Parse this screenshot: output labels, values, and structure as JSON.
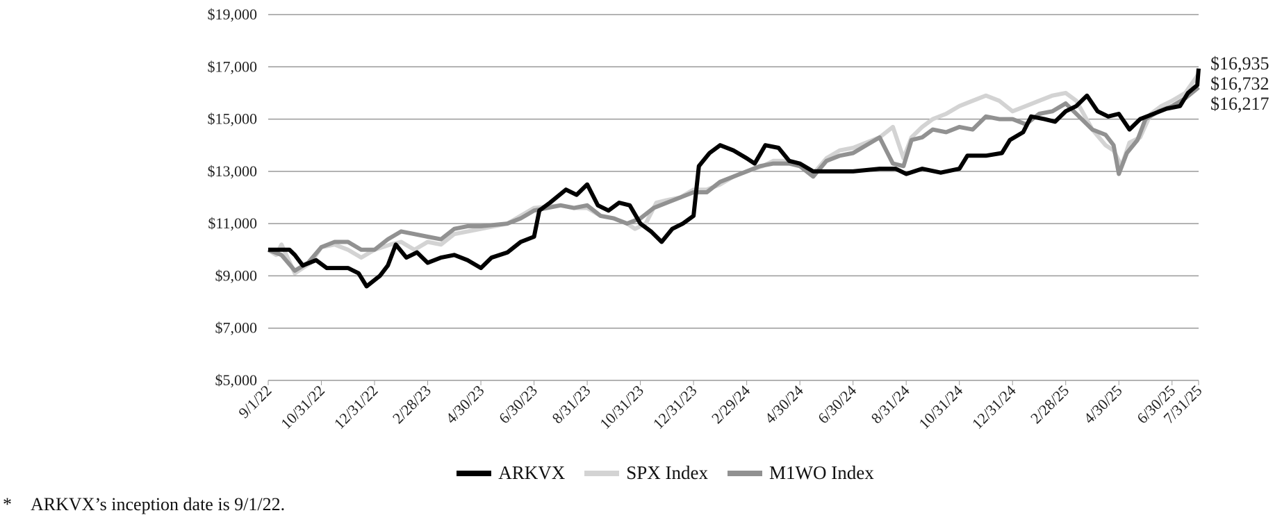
{
  "chart_data": {
    "type": "line",
    "title": "",
    "xlabel": "",
    "ylabel": "",
    "ylim": [
      5000,
      19000
    ],
    "yticks": [
      "$5,000",
      "$7,000",
      "$9,000",
      "$11,000",
      "$13,000",
      "$15,000",
      "$17,000",
      "$19,000"
    ],
    "ytick_values": [
      5000,
      7000,
      9000,
      11000,
      13000,
      15000,
      17000,
      19000
    ],
    "xlim_months": [
      0,
      35
    ],
    "xticks": [
      "9/1/22",
      "10/31/22",
      "12/31/22",
      "2/28/23",
      "4/30/23",
      "6/30/23",
      "8/31/23",
      "10/31/23",
      "12/31/23",
      "2/29/24",
      "4/30/24",
      "6/30/24",
      "8/31/24",
      "10/31/24",
      "12/31/24",
      "2/28/25",
      "4/30/25",
      "6/30/25",
      "7/31/25"
    ],
    "xtick_months": [
      0,
      2,
      4,
      6,
      8,
      10,
      12,
      14,
      16,
      18,
      20,
      22,
      24,
      26,
      28,
      30,
      32,
      34,
      35
    ],
    "x_unit": "months since 9/1/22",
    "grid": true,
    "legend_position": "bottom",
    "series": [
      {
        "name": "ARKVX",
        "color": "#000000",
        "end_label": "$16,935",
        "points": [
          [
            0,
            10000
          ],
          [
            0.8,
            10000
          ],
          [
            1,
            9800
          ],
          [
            1.3,
            9400
          ],
          [
            1.8,
            9600
          ],
          [
            2.2,
            9300
          ],
          [
            3,
            9300
          ],
          [
            3.4,
            9100
          ],
          [
            3.7,
            8600
          ],
          [
            4.2,
            9000
          ],
          [
            4.5,
            9400
          ],
          [
            4.8,
            10200
          ],
          [
            5.2,
            9700
          ],
          [
            5.6,
            9900
          ],
          [
            6,
            9500
          ],
          [
            6.5,
            9700
          ],
          [
            7,
            9800
          ],
          [
            7.5,
            9600
          ],
          [
            8,
            9300
          ],
          [
            8.4,
            9700
          ],
          [
            9,
            9900
          ],
          [
            9.5,
            10300
          ],
          [
            10,
            10500
          ],
          [
            10.2,
            11500
          ],
          [
            10.6,
            11800
          ],
          [
            11.2,
            12300
          ],
          [
            11.6,
            12100
          ],
          [
            12,
            12500
          ],
          [
            12.4,
            11700
          ],
          [
            12.8,
            11500
          ],
          [
            13.2,
            11800
          ],
          [
            13.6,
            11700
          ],
          [
            14,
            11000
          ],
          [
            14.4,
            10700
          ],
          [
            14.8,
            10300
          ],
          [
            15.2,
            10800
          ],
          [
            15.6,
            11000
          ],
          [
            16,
            11300
          ],
          [
            16.2,
            13200
          ],
          [
            16.6,
            13700
          ],
          [
            17,
            14000
          ],
          [
            17.5,
            13800
          ],
          [
            18,
            13500
          ],
          [
            18.3,
            13300
          ],
          [
            18.7,
            14000
          ],
          [
            19.2,
            13900
          ],
          [
            19.6,
            13400
          ],
          [
            20,
            13300
          ],
          [
            20.5,
            13000
          ],
          [
            21,
            13000
          ],
          [
            22,
            13000
          ],
          [
            23,
            13100
          ],
          [
            23.6,
            13100
          ],
          [
            24,
            12900
          ],
          [
            24.6,
            13100
          ],
          [
            25.3,
            12950
          ],
          [
            26,
            13100
          ],
          [
            26.3,
            13600
          ],
          [
            27,
            13600
          ],
          [
            27.6,
            13700
          ],
          [
            27.9,
            14200
          ],
          [
            28.4,
            14500
          ],
          [
            28.7,
            15100
          ],
          [
            29.2,
            15000
          ],
          [
            29.6,
            14900
          ],
          [
            30,
            15300
          ],
          [
            30.4,
            15500
          ],
          [
            30.8,
            15900
          ],
          [
            31.2,
            15300
          ],
          [
            31.6,
            15100
          ],
          [
            32,
            15200
          ],
          [
            32.4,
            14600
          ],
          [
            32.8,
            15000
          ],
          [
            33.3,
            15200
          ],
          [
            33.8,
            15400
          ],
          [
            34.3,
            15500
          ],
          [
            34.6,
            16000
          ],
          [
            34.95,
            16300
          ],
          [
            35,
            16935
          ]
        ]
      },
      {
        "name": "SPX Index",
        "color": "#d3d3d3",
        "end_label": "$16,732",
        "points": [
          [
            0,
            10000
          ],
          [
            0.3,
            9800
          ],
          [
            0.5,
            10200
          ],
          [
            1,
            9100
          ],
          [
            1.3,
            9300
          ],
          [
            1.6,
            9500
          ],
          [
            2,
            10100
          ],
          [
            2.5,
            10200
          ],
          [
            3,
            10000
          ],
          [
            3.5,
            9700
          ],
          [
            4,
            10000
          ],
          [
            4.6,
            10200
          ],
          [
            5,
            10300
          ],
          [
            5.5,
            10000
          ],
          [
            6,
            10300
          ],
          [
            6.5,
            10200
          ],
          [
            7,
            10600
          ],
          [
            7.5,
            10700
          ],
          [
            8,
            10800
          ],
          [
            9,
            11000
          ],
          [
            10,
            11600
          ],
          [
            11,
            11700
          ],
          [
            11.5,
            11600
          ],
          [
            12,
            11600
          ],
          [
            12.5,
            11300
          ],
          [
            13,
            11200
          ],
          [
            13.5,
            11000
          ],
          [
            13.8,
            10800
          ],
          [
            14.2,
            11000
          ],
          [
            14.6,
            11800
          ],
          [
            15,
            11900
          ],
          [
            15.5,
            12000
          ],
          [
            16,
            12300
          ],
          [
            16.5,
            12300
          ],
          [
            17,
            12500
          ],
          [
            17.5,
            12800
          ],
          [
            18,
            13000
          ],
          [
            18.6,
            13200
          ],
          [
            19,
            13400
          ],
          [
            19.6,
            13400
          ],
          [
            20,
            13300
          ],
          [
            20.5,
            12900
          ],
          [
            21,
            13500
          ],
          [
            21.5,
            13800
          ],
          [
            22,
            13900
          ],
          [
            22.5,
            14100
          ],
          [
            23,
            14300
          ],
          [
            23.5,
            14700
          ],
          [
            23.9,
            13500
          ],
          [
            24.2,
            14300
          ],
          [
            24.6,
            14700
          ],
          [
            25,
            15000
          ],
          [
            25.5,
            15200
          ],
          [
            26,
            15500
          ],
          [
            26.5,
            15700
          ],
          [
            27,
            15900
          ],
          [
            27.5,
            15700
          ],
          [
            28,
            15300
          ],
          [
            28.5,
            15500
          ],
          [
            29,
            15700
          ],
          [
            29.5,
            15900
          ],
          [
            30,
            16000
          ],
          [
            30.4,
            15700
          ],
          [
            31,
            14600
          ],
          [
            31.5,
            14000
          ],
          [
            31.8,
            13800
          ],
          [
            32.1,
            13200
          ],
          [
            32.4,
            14100
          ],
          [
            32.8,
            14300
          ],
          [
            33.2,
            15200
          ],
          [
            33.6,
            15500
          ],
          [
            34,
            15700
          ],
          [
            34.5,
            16000
          ],
          [
            35,
            16732
          ]
        ]
      },
      {
        "name": "M1WO Index",
        "color": "#919191",
        "end_label": "$16,217",
        "points": [
          [
            0,
            10000
          ],
          [
            0.5,
            9800
          ],
          [
            1,
            9200
          ],
          [
            1.5,
            9500
          ],
          [
            2,
            10100
          ],
          [
            2.5,
            10300
          ],
          [
            3,
            10300
          ],
          [
            3.5,
            10000
          ],
          [
            4,
            10000
          ],
          [
            4.5,
            10400
          ],
          [
            5,
            10700
          ],
          [
            5.5,
            10600
          ],
          [
            6,
            10500
          ],
          [
            6.5,
            10400
          ],
          [
            7,
            10800
          ],
          [
            7.5,
            10900
          ],
          [
            8,
            10900
          ],
          [
            9,
            11000
          ],
          [
            9.5,
            11200
          ],
          [
            10,
            11500
          ],
          [
            11,
            11700
          ],
          [
            11.5,
            11600
          ],
          [
            12,
            11700
          ],
          [
            12.5,
            11300
          ],
          [
            13,
            11200
          ],
          [
            13.5,
            11000
          ],
          [
            14,
            11200
          ],
          [
            14.5,
            11600
          ],
          [
            15,
            11800
          ],
          [
            15.5,
            12000
          ],
          [
            16,
            12200
          ],
          [
            16.5,
            12200
          ],
          [
            17,
            12600
          ],
          [
            17.5,
            12800
          ],
          [
            18,
            13000
          ],
          [
            18.5,
            13200
          ],
          [
            19,
            13300
          ],
          [
            19.6,
            13300
          ],
          [
            20,
            13200
          ],
          [
            20.5,
            12800
          ],
          [
            21,
            13400
          ],
          [
            21.5,
            13600
          ],
          [
            22,
            13700
          ],
          [
            22.5,
            14000
          ],
          [
            23,
            14300
          ],
          [
            23.5,
            13300
          ],
          [
            23.9,
            13200
          ],
          [
            24.2,
            14200
          ],
          [
            24.6,
            14300
          ],
          [
            25,
            14600
          ],
          [
            25.5,
            14500
          ],
          [
            26,
            14700
          ],
          [
            26.5,
            14600
          ],
          [
            27,
            15100
          ],
          [
            27.5,
            15000
          ],
          [
            28,
            15000
          ],
          [
            28.5,
            14800
          ],
          [
            29,
            15200
          ],
          [
            29.5,
            15300
          ],
          [
            30,
            15600
          ],
          [
            30.4,
            15200
          ],
          [
            31,
            14600
          ],
          [
            31.5,
            14400
          ],
          [
            31.8,
            14000
          ],
          [
            32,
            12900
          ],
          [
            32.3,
            13700
          ],
          [
            32.7,
            14200
          ],
          [
            33,
            15000
          ],
          [
            33.5,
            15300
          ],
          [
            34,
            15500
          ],
          [
            34.5,
            15800
          ],
          [
            35,
            16217
          ]
        ]
      }
    ]
  },
  "legend": {
    "items": [
      "ARKVX",
      "SPX Index",
      "M1WO Index"
    ]
  },
  "footnote": {
    "marker": "*",
    "text": "ARKVX’s inception date is 9/1/22."
  }
}
